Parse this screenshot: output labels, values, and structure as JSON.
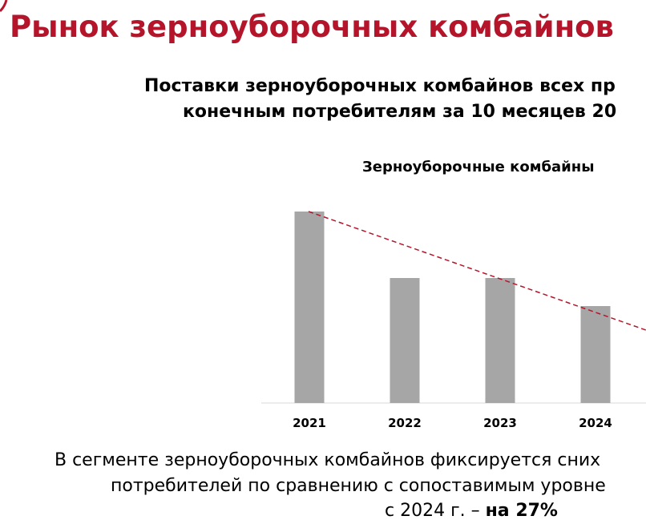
{
  "header": {
    "title": "Рынок зерноуборочных комбайнов"
  },
  "subtitle": [
    "Поставки зерноуборочных комбайнов всех пр",
    "конечным потребителям за 10 месяцев 20"
  ],
  "chart_data": {
    "type": "bar",
    "title": "Зерноуборочные комбайны",
    "categories": [
      "2021",
      "2022",
      "2023",
      "2024"
    ],
    "values": [
      239,
      156,
      156,
      121
    ],
    "color": "#a6a6a6",
    "ylim": [
      0,
      250
    ]
  },
  "footer": {
    "lines": [
      "В сегменте зерноуборочных комбайнов фиксируется сних",
      "потребителей по сравнению с сопоставимым уровне",
      "с 2024 г. – "
    ],
    "emphasis": "на 27%"
  }
}
